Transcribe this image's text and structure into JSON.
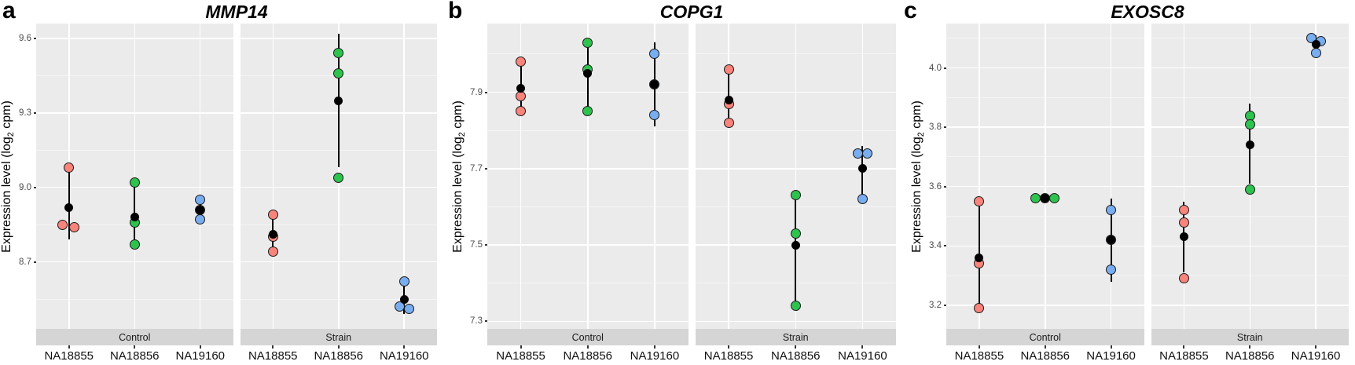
{
  "figure": {
    "background": "#FFFFFF"
  },
  "style": {
    "panel_bg": "#EBEBEB",
    "strip_bg": "#D5D5D5",
    "grid_major": "#FFFFFF",
    "grid_minor": "#F5F5F5",
    "axis_text_color": "#4D4D4D",
    "x_text_color": "#111111",
    "strip_text_color": "#1A1A1A",
    "error_bar_color": "#000000",
    "mean_point_color": "#000000",
    "point_stroke": "#1A1A1A",
    "point_colors": {
      "salmon": "#F8847C",
      "green": "#2EC24E",
      "blue": "#78ADF0"
    }
  },
  "chart_data": [
    {
      "type": "scatter",
      "panel_label": "a",
      "title": "MMP14",
      "ylabel": "Expression level (log2 cpm)",
      "ylabel_parts": {
        "pre": "Expression level (log",
        "sub": "2",
        "post": " cpm)"
      },
      "ylim": [
        8.43,
        9.66
      ],
      "yticks": [
        "8.7",
        "9.0",
        "9.3",
        "9.6"
      ],
      "yminor": [
        8.55,
        8.85,
        9.15,
        9.45
      ],
      "x_categories": [
        "NA18855",
        "NA18856",
        "NA19160"
      ],
      "legend": "none",
      "facets": [
        {
          "label": "Control",
          "groups": [
            {
              "sample": "NA18855",
              "color_key": "salmon",
              "points": [
                9.08,
                8.85,
                8.84
              ],
              "jitter": [
                0,
                -8,
                7
              ],
              "mean": 8.92,
              "range": [
                8.79,
                9.08
              ]
            },
            {
              "sample": "NA18856",
              "color_key": "green",
              "points": [
                9.02,
                8.86,
                8.77
              ],
              "jitter": [
                0,
                0,
                0
              ],
              "mean": 8.88,
              "range": [
                8.77,
                9.02
              ]
            },
            {
              "sample": "NA19160",
              "color_key": "blue",
              "points": [
                8.95,
                8.91,
                8.87
              ],
              "jitter": [
                0,
                0,
                0
              ],
              "mean": 8.91,
              "range": [
                8.86,
                8.96
              ]
            }
          ]
        },
        {
          "label": "Strain",
          "groups": [
            {
              "sample": "NA18855",
              "color_key": "salmon",
              "points": [
                8.89,
                8.8,
                8.74
              ],
              "jitter": [
                0,
                0,
                0
              ],
              "mean": 8.81,
              "range": [
                8.74,
                8.89
              ]
            },
            {
              "sample": "NA18856",
              "color_key": "green",
              "points": [
                9.54,
                9.46,
                9.04
              ],
              "jitter": [
                0,
                0,
                0
              ],
              "mean": 9.35,
              "range": [
                9.08,
                9.62
              ]
            },
            {
              "sample": "NA19160",
              "color_key": "blue",
              "points": [
                8.62,
                8.52,
                8.51
              ],
              "jitter": [
                0,
                -6,
                6
              ],
              "mean": 8.55,
              "range": [
                8.49,
                8.62
              ]
            }
          ]
        }
      ]
    },
    {
      "type": "scatter",
      "panel_label": "b",
      "title": "COPG1",
      "ylabel": "Expression level (log2 cpm)",
      "ylabel_parts": {
        "pre": "Expression level (log",
        "sub": "2",
        "post": " cpm)"
      },
      "ylim": [
        7.28,
        8.08
      ],
      "yticks": [
        "7.3",
        "7.5",
        "7.7",
        "7.9"
      ],
      "yminor": [
        7.4,
        7.6,
        7.8,
        8.0
      ],
      "x_categories": [
        "NA18855",
        "NA18856",
        "NA19160"
      ],
      "legend": "none",
      "facets": [
        {
          "label": "Control",
          "groups": [
            {
              "sample": "NA18855",
              "color_key": "salmon",
              "points": [
                7.98,
                7.89,
                7.85
              ],
              "jitter": [
                0,
                0,
                0
              ],
              "mean": 7.91,
              "range": [
                7.85,
                7.98
              ]
            },
            {
              "sample": "NA18856",
              "color_key": "green",
              "points": [
                8.03,
                7.96,
                7.85
              ],
              "jitter": [
                0,
                0,
                0
              ],
              "mean": 7.95,
              "range": [
                7.85,
                8.03
              ]
            },
            {
              "sample": "NA19160",
              "color_key": "blue",
              "points": [
                8.0,
                7.92,
                7.84
              ],
              "jitter": [
                0,
                0,
                0
              ],
              "mean": 7.92,
              "range": [
                7.81,
                8.03
              ]
            }
          ]
        },
        {
          "label": "Strain",
          "groups": [
            {
              "sample": "NA18855",
              "color_key": "salmon",
              "points": [
                7.96,
                7.87,
                7.82
              ],
              "jitter": [
                0,
                0,
                0
              ],
              "mean": 7.88,
              "range": [
                7.82,
                7.96
              ]
            },
            {
              "sample": "NA18856",
              "color_key": "green",
              "points": [
                7.63,
                7.53,
                7.34
              ],
              "jitter": [
                0,
                0,
                0
              ],
              "mean": 7.5,
              "range": [
                7.35,
                7.64
              ]
            },
            {
              "sample": "NA19160",
              "color_key": "blue",
              "points": [
                7.74,
                7.74,
                7.62
              ],
              "jitter": [
                -6,
                6,
                0
              ],
              "mean": 7.7,
              "range": [
                7.62,
                7.76
              ]
            }
          ]
        }
      ]
    },
    {
      "type": "scatter",
      "panel_label": "c",
      "title": "EXOSC8",
      "ylabel": "Expression level (log2 cpm)",
      "ylabel_parts": {
        "pre": "Expression level (log",
        "sub": "2",
        "post": " cpm)"
      },
      "ylim": [
        3.12,
        4.15
      ],
      "yticks": [
        "3.2",
        "3.4",
        "3.6",
        "3.8",
        "4.0"
      ],
      "yminor": [
        3.3,
        3.5,
        3.7,
        3.9,
        4.1
      ],
      "x_categories": [
        "NA18855",
        "NA18856",
        "NA19160"
      ],
      "legend": "none",
      "facets": [
        {
          "label": "Control",
          "groups": [
            {
              "sample": "NA18855",
              "color_key": "salmon",
              "points": [
                3.55,
                3.34,
                3.19
              ],
              "jitter": [
                0,
                0,
                0
              ],
              "mean": 3.36,
              "range": [
                3.19,
                3.55
              ]
            },
            {
              "sample": "NA18856",
              "color_key": "green",
              "points": [
                3.56,
                3.56,
                3.56
              ],
              "jitter": [
                -12,
                0,
                12
              ],
              "mean": 3.56,
              "range": [
                3.56,
                3.56
              ]
            },
            {
              "sample": "NA19160",
              "color_key": "blue",
              "points": [
                3.52,
                3.42,
                3.32
              ],
              "jitter": [
                0,
                0,
                0
              ],
              "mean": 3.42,
              "range": [
                3.28,
                3.56
              ]
            }
          ]
        },
        {
          "label": "Strain",
          "groups": [
            {
              "sample": "NA18855",
              "color_key": "salmon",
              "points": [
                3.52,
                3.48,
                3.29
              ],
              "jitter": [
                0,
                0,
                0
              ],
              "mean": 3.43,
              "range": [
                3.31,
                3.55
              ]
            },
            {
              "sample": "NA18856",
              "color_key": "green",
              "points": [
                3.84,
                3.81,
                3.59
              ],
              "jitter": [
                0,
                0,
                0
              ],
              "mean": 3.74,
              "range": [
                3.61,
                3.88
              ]
            },
            {
              "sample": "NA19160",
              "color_key": "blue",
              "points": [
                4.1,
                4.09,
                4.05
              ],
              "jitter": [
                -6,
                6,
                0
              ],
              "mean": 4.08,
              "range": [
                4.05,
                4.11
              ]
            }
          ]
        }
      ]
    }
  ]
}
